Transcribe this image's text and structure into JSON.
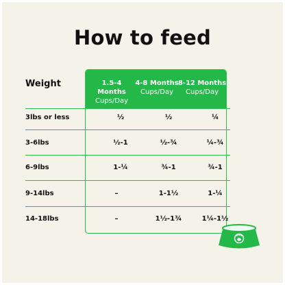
{
  "title": "How to feed",
  "table": {
    "row_header": "Weight",
    "columns": [
      {
        "months": "1.5-4 Months",
        "unit": "Cups/Day"
      },
      {
        "months": "4-8 Months",
        "unit": "Cups/Day"
      },
      {
        "months": "8-12 Months",
        "unit": "Cups/Day"
      }
    ],
    "rows": [
      {
        "label": "3lbs or less",
        "cells": [
          "½",
          "½",
          "¼"
        ]
      },
      {
        "label": "3-6lbs",
        "cells": [
          "½-1",
          "½-¾",
          "¼-¾"
        ]
      },
      {
        "label": "6-9lbs",
        "cells": [
          "1-¼",
          "¾-1",
          "¾-1"
        ]
      },
      {
        "label": "9-14lbs",
        "cells": [
          "–",
          "1-1½",
          "1-¼"
        ]
      },
      {
        "label": "14-18lbs",
        "cells": [
          "–",
          "1½-1¾",
          "1¼-1½"
        ]
      }
    ]
  },
  "colors": {
    "accent": "#24b848",
    "background": "#f5f2ea",
    "text": "#111111"
  },
  "icons": {
    "bowl": "dog-bowl-paw-icon"
  }
}
